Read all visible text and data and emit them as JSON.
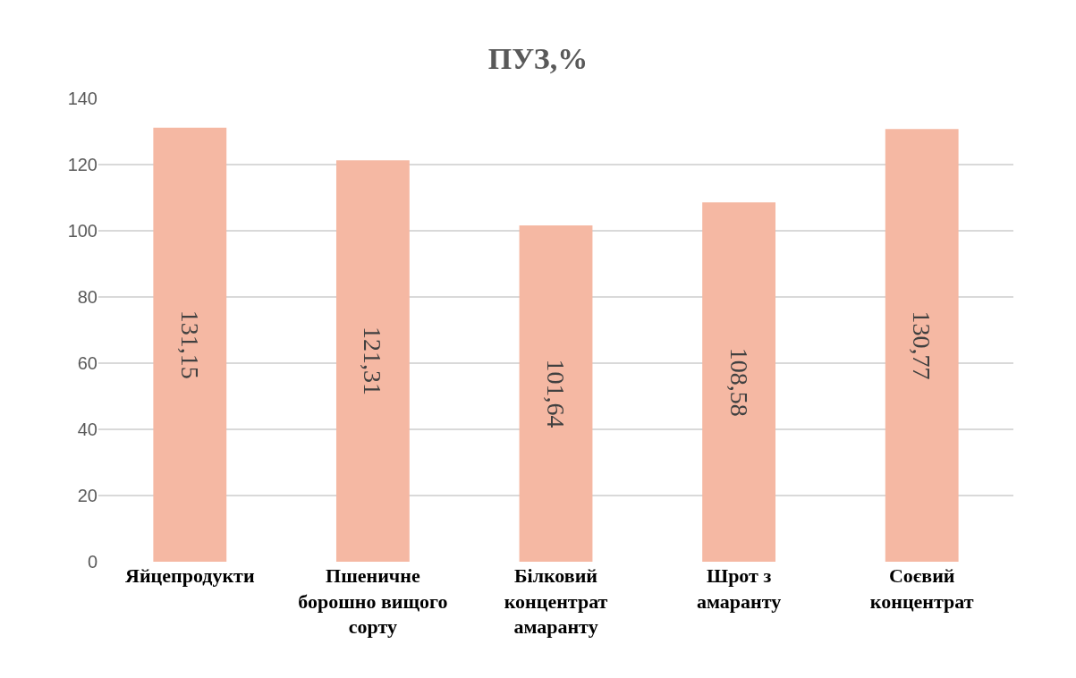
{
  "chart_data": {
    "type": "bar",
    "title": "ПУЗ,%",
    "categories": [
      "Яйцепродукти",
      "Пшеничне борошно вищого сорту",
      "Білковий концентрат амаранту",
      "Шрот з амаранту",
      "Соєвий концентрат"
    ],
    "values": [
      131.15,
      121.31,
      101.64,
      108.58,
      130.77
    ],
    "value_labels": [
      "131,15",
      "121,31",
      "101,64",
      "108,58",
      "130,77"
    ],
    "color": "#f5b8a3",
    "ylim": [
      0,
      140
    ],
    "yticks": [
      0,
      20,
      40,
      60,
      80,
      100,
      120,
      140
    ],
    "grid": "y",
    "legend": false
  }
}
